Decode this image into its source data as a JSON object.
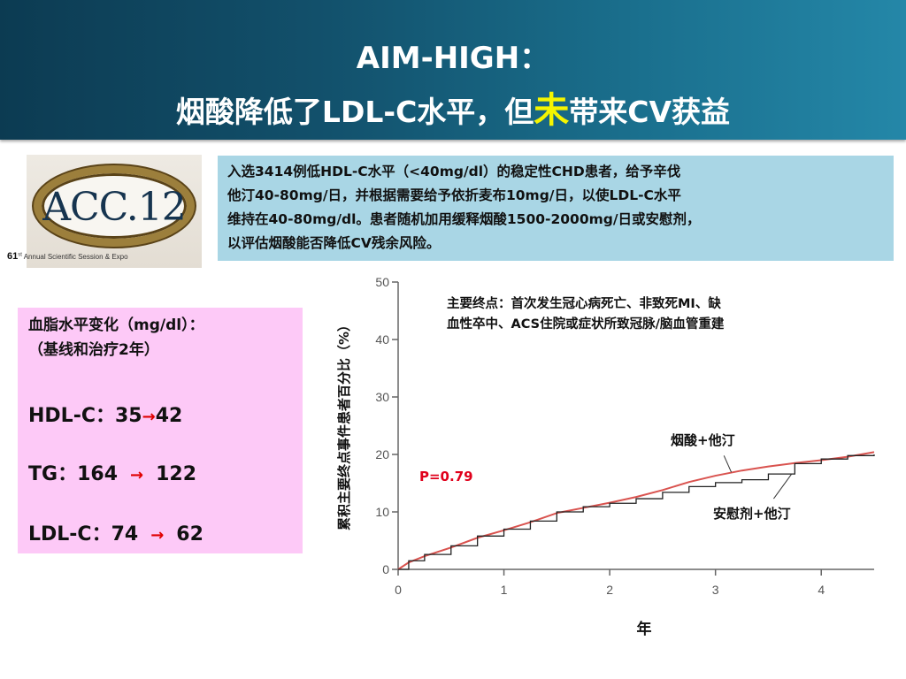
{
  "title": {
    "line1": "AIM-HIGH：",
    "line2_before": "烟酸降低了LDL-C水平，但",
    "line2_highlight": "未",
    "line2_after": "带来CV获益",
    "highlight_color": "#f5f500"
  },
  "logo": {
    "text": "ACC.12",
    "ordinal": "61",
    "ordinal_suffix": "st",
    "subtitle": "Annual Scientific Session & Expo"
  },
  "info_box": {
    "lines": [
      "入选3414例低HDL-C水平（<40mg/dl）的稳定性CHD患者，给予辛伐",
      "他汀40-80mg/日，并根据需要给予依折麦布10mg/日，以使LDL-C水平",
      "维持在40-80mg/dl。患者随机加用缓释烟酸1500-2000mg/日或安慰剂，",
      "以评估烟酸能否降低CV残余风险。"
    ],
    "bg_color": "#a9d6e5"
  },
  "lipids": {
    "heading_line1": "血脂水平变化（mg/dl）：",
    "heading_line2": "（基线和治疗2年）",
    "rows": [
      {
        "name": "HDL-C：",
        "baseline": "35",
        "treated": "42"
      },
      {
        "name": "TG：",
        "baseline": "164",
        "treated": "122"
      },
      {
        "name": "LDL-C：",
        "baseline": "74",
        "treated": "62"
      }
    ],
    "bg_color": "#fdc9f7",
    "arrow_color": "#e00000"
  },
  "chart_data": {
    "type": "line",
    "ylabel": "累积主要终点事件患者百分比（%）",
    "xlabel": "年",
    "xlim": [
      0,
      4.5
    ],
    "ylim": [
      0,
      50
    ],
    "x_ticks": [
      "0",
      "1",
      "2",
      "3",
      "4"
    ],
    "y_ticks": [
      "0",
      "10",
      "20",
      "30",
      "40",
      "50"
    ],
    "grid": false,
    "annotation_lines": [
      "主要终点：首次发生冠心病死亡、非致死MI、缺",
      "血性卒中、ACS住院或症状所致冠脉/脑血管重建"
    ],
    "p_value": "P=0.79",
    "p_value_color": "#e0001b",
    "series": [
      {
        "name": "烟酸+他汀",
        "color": "#d9534f",
        "points": [
          [
            0,
            0
          ],
          [
            0.1,
            1.2
          ],
          [
            0.25,
            2.3
          ],
          [
            0.5,
            3.8
          ],
          [
            0.75,
            5.5
          ],
          [
            1.0,
            6.8
          ],
          [
            1.25,
            8.2
          ],
          [
            1.5,
            9.8
          ],
          [
            1.75,
            10.7
          ],
          [
            2.0,
            11.6
          ],
          [
            2.25,
            12.6
          ],
          [
            2.5,
            13.8
          ],
          [
            2.75,
            15.2
          ],
          [
            3.0,
            16.3
          ],
          [
            3.25,
            17.2
          ],
          [
            3.5,
            17.9
          ],
          [
            3.75,
            18.5
          ],
          [
            4.0,
            19.0
          ],
          [
            4.25,
            19.6
          ],
          [
            4.5,
            20.4
          ]
        ]
      },
      {
        "name": "安慰剂+他汀",
        "color": "#222222",
        "points": [
          [
            0,
            0
          ],
          [
            0.1,
            1.5
          ],
          [
            0.25,
            2.6
          ],
          [
            0.5,
            4.1
          ],
          [
            0.75,
            5.8
          ],
          [
            1.0,
            7.0
          ],
          [
            1.25,
            8.4
          ],
          [
            1.5,
            10.0
          ],
          [
            1.75,
            10.9
          ],
          [
            2.0,
            11.5
          ],
          [
            2.25,
            12.3
          ],
          [
            2.5,
            13.4
          ],
          [
            2.75,
            14.4
          ],
          [
            3.0,
            15.1
          ],
          [
            3.25,
            15.6
          ],
          [
            3.5,
            16.6
          ],
          [
            3.75,
            18.4
          ],
          [
            4.0,
            19.2
          ],
          [
            4.25,
            19.8
          ],
          [
            4.5,
            20.0
          ]
        ]
      }
    ]
  }
}
